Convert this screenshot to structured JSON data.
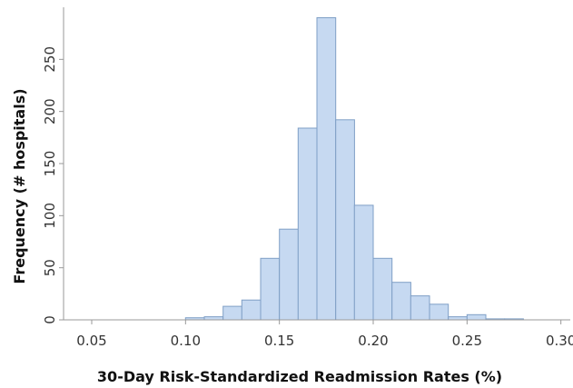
{
  "chart_data": {
    "type": "bar",
    "subtype": "histogram",
    "xlabel": "30-Day Risk-Standardized Readmission Rates (%)",
    "ylabel": "Frequency (# hospitals)",
    "x_ticks": [
      "0.05",
      "0.10",
      "0.15",
      "0.20",
      "0.25",
      "0.30"
    ],
    "y_ticks": [
      "0",
      "50",
      "100",
      "150",
      "200",
      "250"
    ],
    "xlim": [
      0.035,
      0.305
    ],
    "ylim": [
      0,
      300
    ],
    "grid": false,
    "bar_fill": "#c6d9f1",
    "bar_stroke": "#7f9fc6",
    "bins": [
      {
        "x0": 0.1,
        "x1": 0.11,
        "value": 2
      },
      {
        "x0": 0.11,
        "x1": 0.12,
        "value": 3
      },
      {
        "x0": 0.12,
        "x1": 0.13,
        "value": 13
      },
      {
        "x0": 0.13,
        "x1": 0.14,
        "value": 19
      },
      {
        "x0": 0.14,
        "x1": 0.15,
        "value": 59
      },
      {
        "x0": 0.15,
        "x1": 0.16,
        "value": 87
      },
      {
        "x0": 0.16,
        "x1": 0.17,
        "value": 184
      },
      {
        "x0": 0.17,
        "x1": 0.18,
        "value": 290
      },
      {
        "x0": 0.18,
        "x1": 0.19,
        "value": 192
      },
      {
        "x0": 0.19,
        "x1": 0.2,
        "value": 110
      },
      {
        "x0": 0.2,
        "x1": 0.21,
        "value": 59
      },
      {
        "x0": 0.21,
        "x1": 0.22,
        "value": 36
      },
      {
        "x0": 0.22,
        "x1": 0.23,
        "value": 23
      },
      {
        "x0": 0.23,
        "x1": 0.24,
        "value": 15
      },
      {
        "x0": 0.24,
        "x1": 0.25,
        "value": 3
      },
      {
        "x0": 0.25,
        "x1": 0.26,
        "value": 5
      },
      {
        "x0": 0.26,
        "x1": 0.27,
        "value": 1
      },
      {
        "x0": 0.27,
        "x1": 0.28,
        "value": 1
      }
    ]
  }
}
